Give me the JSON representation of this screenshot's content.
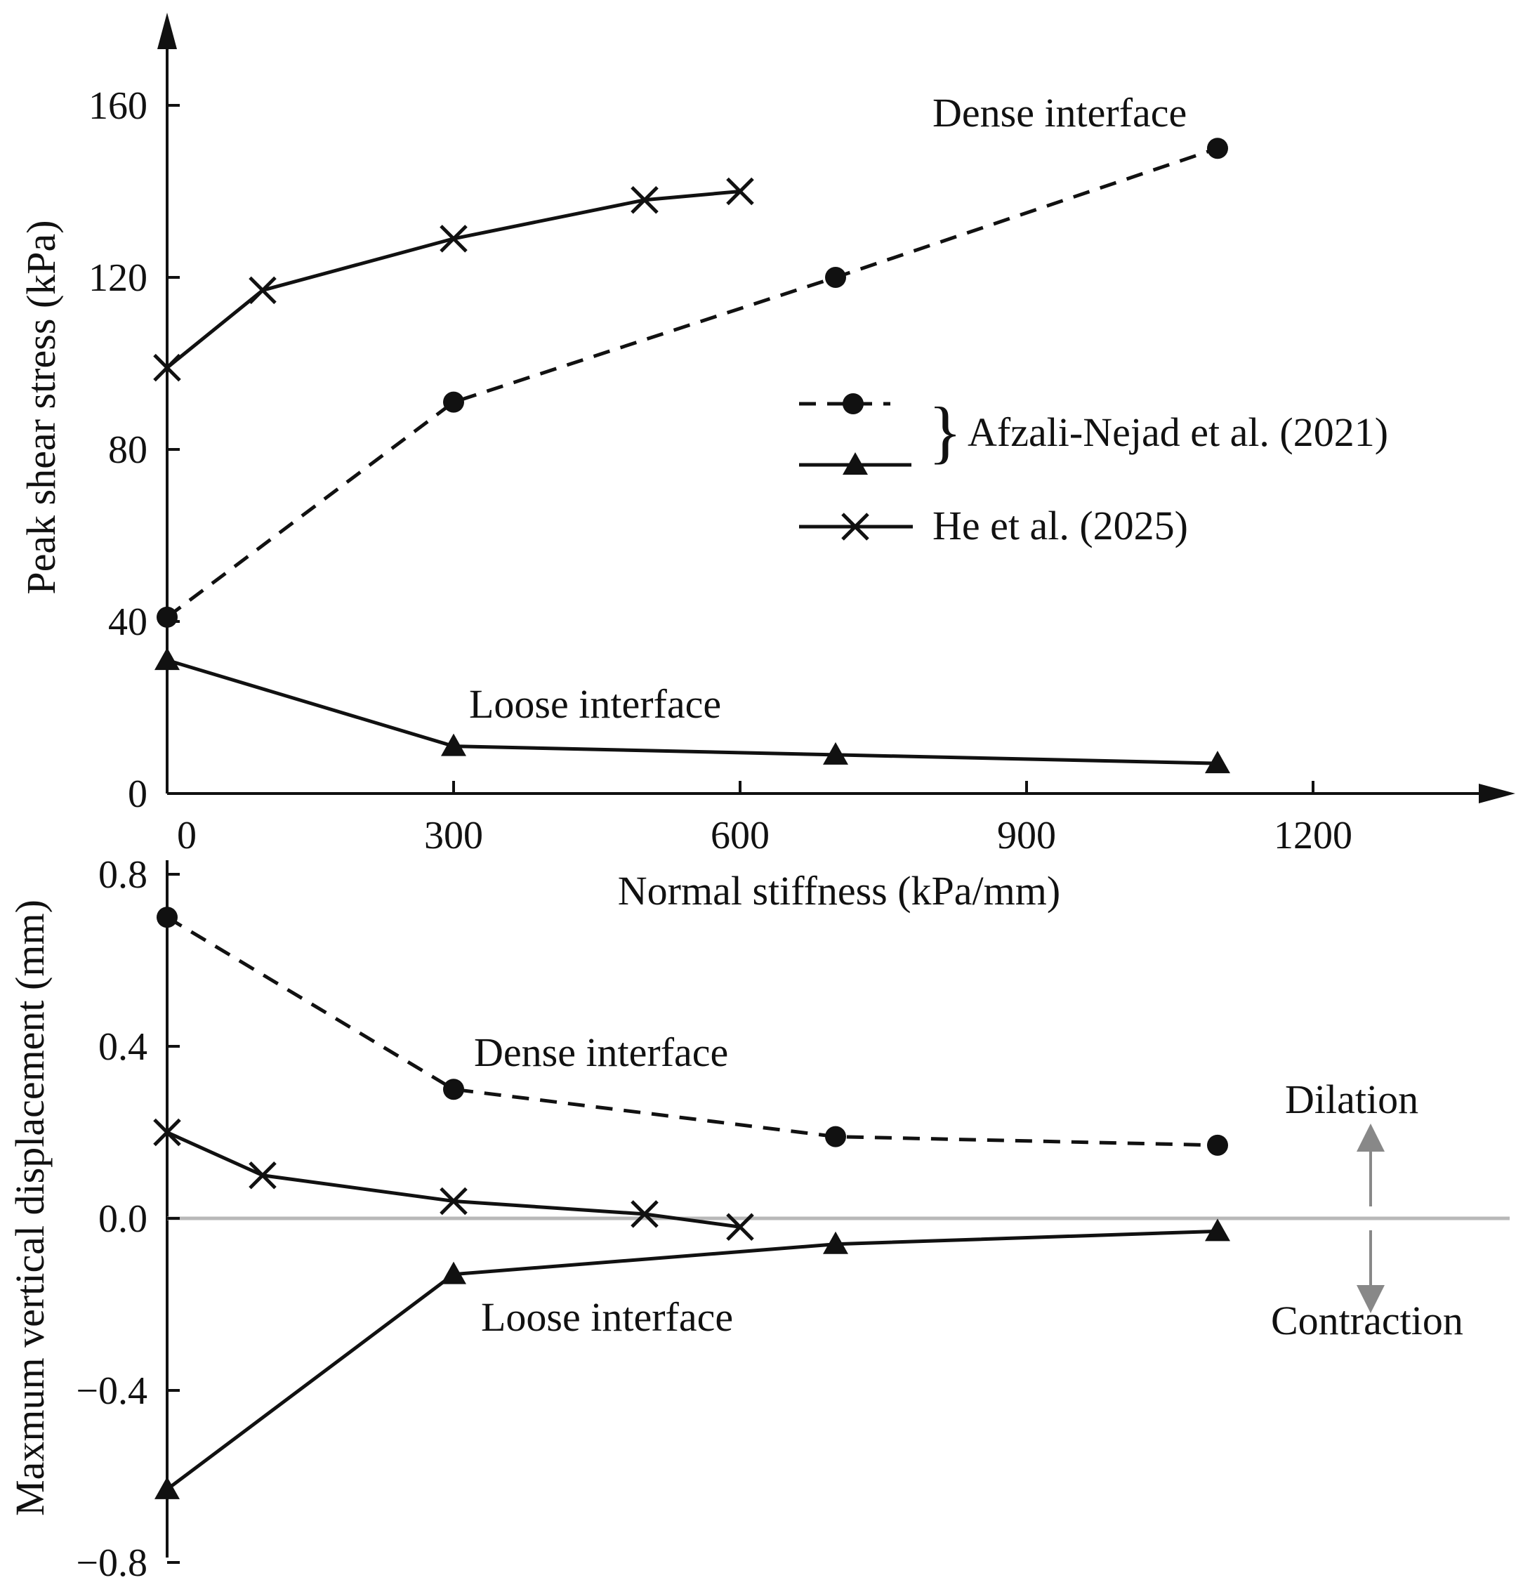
{
  "chart_data": [
    {
      "type": "line",
      "panel": "top",
      "ylabel": "Peak shear stress (kPa)",
      "xlabel": "Normal stiffness (kPa/mm)",
      "xlim": [
        0,
        1350
      ],
      "ylim": [
        0,
        180
      ],
      "x_ticks": [
        0,
        300,
        600,
        900,
        1200
      ],
      "x_tick_labels": [
        "0",
        "300",
        "600",
        "900",
        "1200"
      ],
      "y_ticks": [
        0,
        40,
        80,
        120,
        160
      ],
      "y_tick_labels": [
        "0",
        "40",
        "80",
        "120",
        "160"
      ],
      "series": [
        {
          "name": "Dense interface",
          "source": "Afzali-Nejad et al. (2021)",
          "style": "dashed",
          "marker": "circle",
          "x": [
            0,
            300,
            700,
            1100
          ],
          "values": [
            41,
            91,
            120,
            150
          ]
        },
        {
          "name": "Loose interface",
          "source": "Afzali-Nejad et al. (2021)",
          "style": "solid",
          "marker": "triangle",
          "x": [
            0,
            300,
            700,
            1100
          ],
          "values": [
            31,
            11,
            9,
            7
          ]
        },
        {
          "name": "He et al. (2025)",
          "source": "He et al. (2025)",
          "style": "solid",
          "marker": "cross",
          "x": [
            0,
            100,
            300,
            500,
            600
          ],
          "values": [
            99,
            117,
            129,
            138,
            140
          ]
        }
      ],
      "annotations": [
        "Dense interface",
        "Loose interface"
      ],
      "legend": {
        "entries": [
          "Afzali-Nejad et al. (2021)",
          "He et al. (2025)"
        ],
        "placement": "middle-right"
      }
    },
    {
      "type": "line",
      "panel": "bottom",
      "ylabel": "Maxmum vertical displacement (mm)",
      "xlim": [
        0,
        1350
      ],
      "ylim": [
        -0.8,
        0.8
      ],
      "y_ticks": [
        0.8,
        0.4,
        0.0,
        -0.4,
        -0.8
      ],
      "y_tick_labels": [
        "0.8",
        "0.4",
        "0.0",
        "−0.4",
        "−0.8"
      ],
      "zero_line": true,
      "series": [
        {
          "name": "Dense interface",
          "source": "Afzali-Nejad et al. (2021)",
          "style": "dashed",
          "marker": "circle",
          "x": [
            0,
            300,
            700,
            1100
          ],
          "values": [
            0.7,
            0.3,
            0.19,
            0.17
          ]
        },
        {
          "name": "Loose interface",
          "source": "Afzali-Nejad et al. (2021)",
          "style": "solid",
          "marker": "triangle",
          "x": [
            0,
            300,
            700,
            1100
          ],
          "values": [
            -0.63,
            -0.13,
            -0.06,
            -0.03
          ]
        },
        {
          "name": "He et al. (2025)",
          "source": "He et al. (2025)",
          "style": "solid",
          "marker": "cross",
          "x": [
            0,
            100,
            300,
            500,
            600
          ],
          "values": [
            0.2,
            0.1,
            0.04,
            0.01,
            -0.02
          ]
        }
      ],
      "annotations": [
        "Dense interface",
        "Loose interface",
        "Dilation",
        "Contraction"
      ]
    }
  ]
}
